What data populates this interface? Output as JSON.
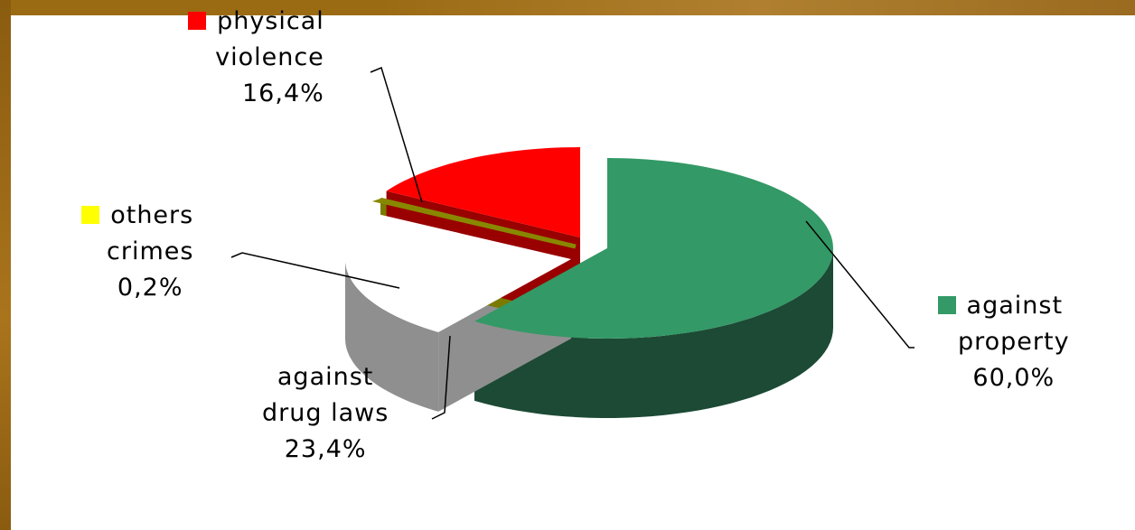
{
  "chart_data": {
    "type": "pie",
    "style": "3d-exploded",
    "slices": [
      {
        "name": "against property",
        "value": 60.0,
        "label": "60,0%",
        "color": "#339966",
        "side_color": "#1c4a35"
      },
      {
        "name": "against drug laws",
        "value": 23.4,
        "label": "23,4%",
        "color": "#ffffff",
        "side_color": "#8f8f8f"
      },
      {
        "name": "others crimes",
        "value": 0.2,
        "label": "0,2%",
        "color": "#ffff00",
        "side_color": "#7a7a00"
      },
      {
        "name": "physical violence",
        "value": 16.4,
        "label": "16,4%",
        "color": "#ff0000",
        "side_color": "#990000"
      }
    ]
  },
  "labels": {
    "physical_violence": {
      "line1": "physical",
      "line2": "violence",
      "pct": "16,4%"
    },
    "others_crimes": {
      "line1": "others",
      "line2": "crimes",
      "pct": "0,2%"
    },
    "drug_laws": {
      "line1": "against",
      "line2": "drug laws",
      "pct": "23,4%"
    },
    "property": {
      "line1": "against",
      "line2": "property",
      "pct": "60,0%"
    }
  },
  "colors": {
    "frame": "#9b6b14",
    "panel": "#ffffff",
    "leader_line": "#000000"
  }
}
